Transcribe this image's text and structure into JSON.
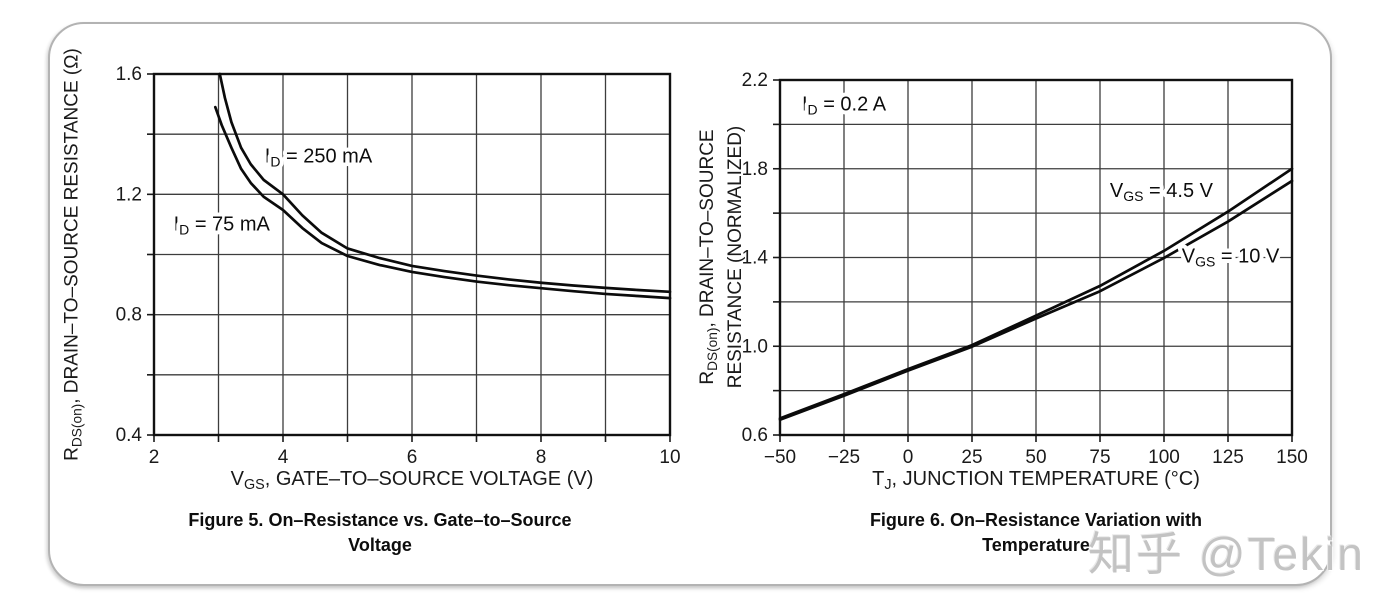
{
  "watermark": {
    "text": "知乎 @Tekin"
  },
  "chart_data": [
    {
      "type": "line",
      "title": "Figure 5. On–Resistance vs. Gate–to–Source Voltage",
      "caption_lines": [
        "Figure 5. On–Resistance vs. Gate–to–Source",
        "Voltage"
      ],
      "xlabel": "VGS, GATE–TO–SOURCE VOLTAGE (V)",
      "xlabel_segments": [
        {
          "t": "V"
        },
        {
          "t": "GS",
          "sub": true
        },
        {
          "t": ", GATE–TO–SOURCE VOLTAGE (V)"
        }
      ],
      "ylabel": "RDS(on), DRAIN–TO–SOURCE RESISTANCE (Ω)",
      "ylabel_lines": [
        [
          {
            "t": "R"
          },
          {
            "t": "DS(on)",
            "sub": true
          },
          {
            "t": ", DRAIN–TO–SOURCE RESISTANCE (Ω)"
          }
        ]
      ],
      "xlim": [
        2,
        10
      ],
      "ylim": [
        0.4,
        1.6
      ],
      "x_grid_step": 1,
      "y_grid_step": 0.2,
      "grid": true,
      "legend_position": "inline-annotations",
      "x_tick_labels": [
        {
          "v": 2,
          "t": "2"
        },
        {
          "v": 4,
          "t": "4"
        },
        {
          "v": 6,
          "t": "6"
        },
        {
          "v": 8,
          "t": "8"
        },
        {
          "v": 10,
          "t": "10"
        }
      ],
      "y_tick_labels": [
        {
          "v": 0.4,
          "t": "0.4"
        },
        {
          "v": 0.8,
          "t": "0.8"
        },
        {
          "v": 1.2,
          "t": "1.2"
        },
        {
          "v": 1.6,
          "t": "1.6"
        }
      ],
      "series": [
        {
          "name": "ID = 250 mA",
          "points": [
            [
              3.02,
              1.6
            ],
            [
              3.1,
              1.52
            ],
            [
              3.2,
              1.44
            ],
            [
              3.35,
              1.355
            ],
            [
              3.5,
              1.3
            ],
            [
              3.7,
              1.248
            ],
            [
              4,
              1.2
            ],
            [
              4.3,
              1.13
            ],
            [
              4.6,
              1.072
            ],
            [
              5,
              1.02
            ],
            [
              5.5,
              0.988
            ],
            [
              6,
              0.962
            ],
            [
              6.5,
              0.945
            ],
            [
              7,
              0.93
            ],
            [
              7.5,
              0.917
            ],
            [
              8,
              0.906
            ],
            [
              8.5,
              0.897
            ],
            [
              9,
              0.889
            ],
            [
              9.5,
              0.882
            ],
            [
              10,
              0.876
            ]
          ]
        },
        {
          "name": "ID = 75 mA",
          "points": [
            [
              2.95,
              1.49
            ],
            [
              3.05,
              1.43
            ],
            [
              3.2,
              1.355
            ],
            [
              3.35,
              1.285
            ],
            [
              3.5,
              1.238
            ],
            [
              3.7,
              1.192
            ],
            [
              4,
              1.148
            ],
            [
              4.3,
              1.088
            ],
            [
              4.6,
              1.038
            ],
            [
              5,
              0.995
            ],
            [
              5.5,
              0.965
            ],
            [
              6,
              0.942
            ],
            [
              6.5,
              0.925
            ],
            [
              7,
              0.91
            ],
            [
              7.5,
              0.898
            ],
            [
              8,
              0.888
            ],
            [
              8.5,
              0.878
            ],
            [
              9,
              0.869
            ],
            [
              9.5,
              0.862
            ],
            [
              10,
              0.855
            ]
          ]
        }
      ],
      "annotations": [
        {
          "segments": [
            {
              "t": "I"
            },
            {
              "t": "D",
              "sub": true
            },
            {
              "t": " = 250 mA"
            }
          ],
          "x": 4.55,
          "y": 1.325,
          "anchor": "middle"
        },
        {
          "segments": [
            {
              "t": "I"
            },
            {
              "t": "D",
              "sub": true
            },
            {
              "t": " = 75 mA"
            }
          ],
          "x": 3.05,
          "y": 1.1,
          "anchor": "middle"
        }
      ]
    },
    {
      "type": "line",
      "title": "Figure 6. On–Resistance Variation with Temperature",
      "caption_lines": [
        "Figure 6. On–Resistance Variation with",
        "Temperature"
      ],
      "xlabel": "TJ, JUNCTION TEMPERATURE (°C)",
      "xlabel_segments": [
        {
          "t": "T"
        },
        {
          "t": "J",
          "sub": true
        },
        {
          "t": ", JUNCTION TEMPERATURE (°C)"
        }
      ],
      "ylabel": "RDS(on), DRAIN–TO–SOURCE RESISTANCE (NORMALIZED)",
      "ylabel_lines": [
        [
          {
            "t": "R"
          },
          {
            "t": "DS(on)",
            "sub": true
          },
          {
            "t": ", DRAIN–TO–SOURCE"
          }
        ],
        [
          {
            "t": "RESISTANCE (NORMALIZED)"
          }
        ]
      ],
      "xlim": [
        -50,
        150
      ],
      "ylim": [
        0.6,
        2.2
      ],
      "x_grid_step": 25,
      "y_grid_step": 0.2,
      "grid": true,
      "legend_position": "inline-annotations",
      "x_tick_labels": [
        {
          "v": -50,
          "t": "−50"
        },
        {
          "v": -25,
          "t": "−25"
        },
        {
          "v": 0,
          "t": "0"
        },
        {
          "v": 25,
          "t": "25"
        },
        {
          "v": 50,
          "t": "50"
        },
        {
          "v": 75,
          "t": "75"
        },
        {
          "v": 100,
          "t": "100"
        },
        {
          "v": 125,
          "t": "125"
        },
        {
          "v": 150,
          "t": "150"
        }
      ],
      "y_tick_labels": [
        {
          "v": 0.6,
          "t": "0.6"
        },
        {
          "v": 1.0,
          "t": "1.0"
        },
        {
          "v": 1.4,
          "t": "1.4"
        },
        {
          "v": 1.8,
          "t": "1.8"
        },
        {
          "v": 2.2,
          "t": "2.2"
        }
      ],
      "series": [
        {
          "name": "VGS = 4.5 V",
          "points": [
            [
              -50,
              0.675
            ],
            [
              -25,
              0.784
            ],
            [
              0,
              0.897
            ],
            [
              25,
              1.005
            ],
            [
              50,
              1.138
            ],
            [
              75,
              1.272
            ],
            [
              100,
              1.43
            ],
            [
              125,
              1.607
            ],
            [
              150,
              1.8
            ]
          ]
        },
        {
          "name": "VGS = 10 V",
          "points": [
            [
              -50,
              0.669
            ],
            [
              -25,
              0.777
            ],
            [
              0,
              0.89
            ],
            [
              25,
              0.998
            ],
            [
              50,
              1.125
            ],
            [
              75,
              1.248
            ],
            [
              100,
              1.398
            ],
            [
              125,
              1.562
            ],
            [
              150,
              1.745
            ]
          ]
        }
      ],
      "annotations": [
        {
          "segments": [
            {
              "t": "I"
            },
            {
              "t": "D",
              "sub": true
            },
            {
              "t": " = 0.2 A"
            }
          ],
          "x": -25,
          "y": 2.09,
          "anchor": "middle"
        },
        {
          "segments": [
            {
              "t": "V"
            },
            {
              "t": "GS",
              "sub": true
            },
            {
              "t": " = 4.5 V"
            }
          ],
          "x": 99,
          "y": 1.7,
          "anchor": "middle"
        },
        {
          "segments": [
            {
              "t": "V"
            },
            {
              "t": "GS",
              "sub": true
            },
            {
              "t": " = 10 V"
            }
          ],
          "x": 126,
          "y": 1.405,
          "anchor": "middle"
        }
      ]
    }
  ]
}
